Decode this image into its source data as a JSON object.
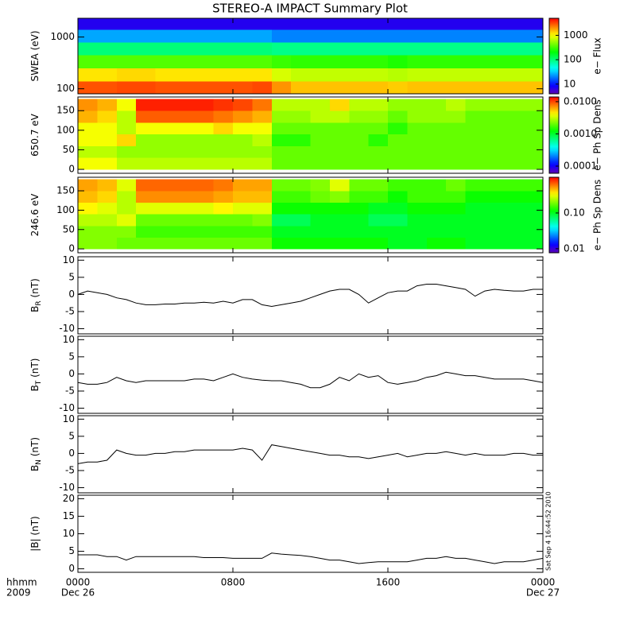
{
  "page": {
    "title": "STEREO-A IMPACT Summary Plot",
    "x_row_labels": [
      "hhmm",
      "2009"
    ],
    "timestamp": "Sat Sep  4 16:44:52 2010"
  },
  "chart_data": [
    {
      "type": "heatmap",
      "ylabel": "SWEA (eV)",
      "ylog": true,
      "ylim": [
        80,
        2300
      ],
      "yticks": [
        100,
        1000
      ],
      "xlim": [
        0,
        24
      ],
      "xticks": [
        {
          "value": 0,
          "label": "0000"
        },
        {
          "value": 8,
          "label": "0800"
        },
        {
          "value": 16,
          "label": "1600"
        },
        {
          "value": 24,
          "label": "0000"
        }
      ],
      "x_edges": [
        0,
        1,
        2,
        3,
        4,
        5,
        6,
        7,
        8,
        9,
        10,
        11,
        12,
        13,
        14,
        15,
        16,
        17,
        18,
        19,
        20,
        21,
        22,
        23,
        24
      ],
      "y_edges": [
        80,
        140,
        250,
        450,
        800,
        1400,
        2300
      ],
      "colormap": "rainbow",
      "zlog": true,
      "zlim": [
        4,
        5000
      ],
      "zticks": [
        10,
        100,
        1000
      ],
      "zlabel": "e− Flux",
      "z": [
        [
          3000,
          3000,
          3200,
          3200,
          3000,
          3000,
          3000,
          3000,
          3000,
          3200,
          2000,
          1500,
          1500,
          1500,
          1500,
          1500,
          1400,
          1500,
          1500,
          1500,
          1500,
          1500,
          1500,
          1500
        ],
        [
          1200,
          1200,
          1300,
          1300,
          1200,
          1200,
          1200,
          1200,
          1200,
          1200,
          800,
          700,
          700,
          700,
          700,
          700,
          650,
          700,
          700,
          700,
          700,
          700,
          700,
          700
        ],
        [
          350,
          350,
          350,
          350,
          350,
          350,
          350,
          350,
          350,
          350,
          300,
          280,
          280,
          280,
          280,
          280,
          250,
          280,
          280,
          280,
          280,
          280,
          280,
          280
        ],
        [
          100,
          100,
          100,
          100,
          100,
          100,
          100,
          100,
          100,
          100,
          90,
          90,
          90,
          90,
          90,
          90,
          90,
          90,
          90,
          90,
          90,
          90,
          90,
          90
        ],
        [
          25,
          25,
          25,
          25,
          25,
          25,
          25,
          25,
          25,
          25,
          20,
          20,
          20,
          20,
          20,
          20,
          20,
          20,
          20,
          20,
          20,
          20,
          20,
          20
        ],
        [
          7,
          7,
          7,
          7,
          7,
          7,
          7,
          7,
          7,
          7,
          7,
          7,
          7,
          7,
          7,
          7,
          7,
          7,
          7,
          7,
          7,
          7,
          7,
          7
        ]
      ]
    },
    {
      "type": "heatmap",
      "ylabel": "650.7 eV",
      "ylog": false,
      "ylim": [
        -10,
        185
      ],
      "yticks": [
        0,
        50,
        100,
        150
      ],
      "xlim": [
        0,
        24
      ],
      "xticks": [
        {
          "value": 0,
          "label": "0000"
        },
        {
          "value": 8,
          "label": "0800"
        },
        {
          "value": 16,
          "label": "1600"
        },
        {
          "value": 24,
          "label": "0000"
        }
      ],
      "x_edges": [
        0,
        1,
        2,
        3,
        4,
        5,
        6,
        7,
        8,
        9,
        10,
        11,
        12,
        13,
        14,
        15,
        16,
        17,
        18,
        19,
        20,
        21,
        22,
        23,
        24
      ],
      "y_edges": [
        0,
        30,
        60,
        90,
        120,
        150,
        180
      ],
      "colormap": "rainbow",
      "zlog": true,
      "zlim": [
        6e-05,
        0.014
      ],
      "zticks": [
        {
          "value": 0.0001,
          "label": "0.0001"
        },
        {
          "value": 0.001,
          "label": "0.0010"
        },
        {
          "value": 0.01,
          "label": "0.0100"
        }
      ],
      "zlabel": "e− Ph Sp Dens",
      "z": [
        [
          0.004,
          0.004,
          0.003,
          0.003,
          0.003,
          0.003,
          0.003,
          0.003,
          0.003,
          0.003,
          0.002,
          0.002,
          0.002,
          0.002,
          0.002,
          0.002,
          0.002,
          0.002,
          0.002,
          0.002,
          0.002,
          0.002,
          0.002,
          0.002
        ],
        [
          0.003,
          0.003,
          0.0025,
          0.0025,
          0.0025,
          0.0025,
          0.0025,
          0.0025,
          0.0025,
          0.0025,
          0.002,
          0.002,
          0.002,
          0.002,
          0.002,
          0.002,
          0.002,
          0.002,
          0.002,
          0.002,
          0.002,
          0.002,
          0.002,
          0.002
        ],
        [
          0.004,
          0.004,
          0.005,
          0.0025,
          0.0025,
          0.0025,
          0.0025,
          0.0025,
          0.0025,
          0.003,
          0.0015,
          0.0015,
          0.002,
          0.002,
          0.002,
          0.0015,
          0.002,
          0.002,
          0.002,
          0.002,
          0.002,
          0.002,
          0.002,
          0.002
        ],
        [
          0.004,
          0.004,
          0.003,
          0.004,
          0.004,
          0.004,
          0.004,
          0.005,
          0.004,
          0.004,
          0.002,
          0.002,
          0.002,
          0.002,
          0.002,
          0.002,
          0.0015,
          0.002,
          0.002,
          0.002,
          0.002,
          0.002,
          0.002,
          0.002
        ],
        [
          0.006,
          0.005,
          0.003,
          0.009,
          0.009,
          0.009,
          0.009,
          0.008,
          0.007,
          0.006,
          0.0025,
          0.0025,
          0.003,
          0.003,
          0.0025,
          0.0025,
          0.002,
          0.0025,
          0.0025,
          0.0025,
          0.002,
          0.002,
          0.002,
          0.002
        ],
        [
          0.007,
          0.006,
          0.004,
          0.012,
          0.012,
          0.012,
          0.012,
          0.011,
          0.01,
          0.008,
          0.003,
          0.003,
          0.003,
          0.005,
          0.003,
          0.003,
          0.0025,
          0.0025,
          0.0025,
          0.003,
          0.0025,
          0.0025,
          0.0025,
          0.0025
        ]
      ]
    },
    {
      "type": "heatmap",
      "ylabel": "246.6 eV",
      "ylog": false,
      "ylim": [
        -10,
        185
      ],
      "yticks": [
        0,
        50,
        100,
        150
      ],
      "xlim": [
        0,
        24
      ],
      "xticks": [
        {
          "value": 0,
          "label": "0000"
        },
        {
          "value": 8,
          "label": "0800"
        },
        {
          "value": 16,
          "label": "1600"
        },
        {
          "value": 24,
          "label": "0000"
        }
      ],
      "x_edges": [
        0,
        1,
        2,
        3,
        4,
        5,
        6,
        7,
        8,
        9,
        10,
        11,
        12,
        13,
        14,
        15,
        16,
        17,
        18,
        19,
        20,
        21,
        22,
        23,
        24
      ],
      "y_edges": [
        0,
        30,
        60,
        90,
        120,
        150,
        180
      ],
      "colormap": "rainbow",
      "zlog": true,
      "zlim": [
        0.0077,
        1
      ],
      "zticks": [
        0.01,
        {
          "value": 0.1,
          "label": "0.10"
        }
      ],
      "zlabel": "e− Ph Sp Dens",
      "z": [
        [
          0.2,
          0.2,
          0.18,
          0.18,
          0.18,
          0.18,
          0.18,
          0.18,
          0.18,
          0.18,
          0.12,
          0.12,
          0.12,
          0.12,
          0.12,
          0.12,
          0.1,
          0.1,
          0.12,
          0.12,
          0.1,
          0.1,
          0.1,
          0.1
        ],
        [
          0.2,
          0.2,
          0.2,
          0.15,
          0.15,
          0.15,
          0.15,
          0.15,
          0.15,
          0.15,
          0.1,
          0.1,
          0.1,
          0.1,
          0.1,
          0.1,
          0.1,
          0.1,
          0.1,
          0.1,
          0.1,
          0.1,
          0.1,
          0.1
        ],
        [
          0.25,
          0.25,
          0.3,
          0.18,
          0.18,
          0.18,
          0.18,
          0.18,
          0.18,
          0.2,
          0.08,
          0.08,
          0.1,
          0.1,
          0.1,
          0.08,
          0.08,
          0.1,
          0.1,
          0.1,
          0.1,
          0.1,
          0.1,
          0.1
        ],
        [
          0.35,
          0.3,
          0.25,
          0.3,
          0.3,
          0.3,
          0.3,
          0.35,
          0.3,
          0.3,
          0.12,
          0.12,
          0.12,
          0.12,
          0.12,
          0.1,
          0.1,
          0.12,
          0.12,
          0.12,
          0.1,
          0.1,
          0.1,
          0.1
        ],
        [
          0.45,
          0.4,
          0.25,
          0.55,
          0.55,
          0.55,
          0.55,
          0.5,
          0.45,
          0.45,
          0.15,
          0.15,
          0.18,
          0.2,
          0.15,
          0.15,
          0.12,
          0.15,
          0.15,
          0.15,
          0.12,
          0.12,
          0.12,
          0.12
        ],
        [
          0.5,
          0.45,
          0.3,
          0.65,
          0.65,
          0.65,
          0.65,
          0.6,
          0.5,
          0.5,
          0.18,
          0.18,
          0.2,
          0.3,
          0.18,
          0.18,
          0.15,
          0.15,
          0.15,
          0.18,
          0.15,
          0.15,
          0.15,
          0.15
        ]
      ]
    },
    {
      "type": "line",
      "ylabel": "B",
      "ylabel_sub": "R",
      "ylabel_unit": " (nT)",
      "ylim": [
        -11.5,
        11
      ],
      "yticks": [
        -10,
        -5,
        0,
        5,
        10
      ],
      "color": "#000000",
      "xlim": [
        0,
        24
      ],
      "xticks": [
        {
          "value": 0,
          "label": "0000"
        },
        {
          "value": 8,
          "label": "0800"
        },
        {
          "value": 16,
          "label": "1600"
        },
        {
          "value": 24,
          "label": "0000"
        }
      ],
      "x": [
        0,
        0.5,
        1,
        1.5,
        2,
        2.5,
        3,
        3.5,
        4,
        4.5,
        5,
        5.5,
        6,
        6.5,
        7,
        7.5,
        8,
        8.5,
        9,
        9.5,
        10,
        10.5,
        11,
        11.5,
        12,
        12.5,
        13,
        13.5,
        14,
        14.5,
        15,
        15.5,
        16,
        16.5,
        17,
        17.5,
        18,
        18.5,
        19,
        19.5,
        20,
        20.5,
        21,
        21.5,
        22,
        22.5,
        23,
        23.5,
        24
      ],
      "values": [
        0,
        1,
        0.5,
        0,
        -1,
        -1.5,
        -2.5,
        -3,
        -3,
        -2.8,
        -2.8,
        -2.5,
        -2.5,
        -2.3,
        -2.5,
        -2,
        -2.5,
        -1.5,
        -1.5,
        -3,
        -3.5,
        -3,
        -2.5,
        -2,
        -1,
        0,
        1,
        1.5,
        1.5,
        0,
        -2.5,
        -1,
        0.5,
        1,
        1,
        2.5,
        3,
        3,
        2.5,
        2,
        1.5,
        -0.5,
        1,
        1.5,
        1.2,
        1,
        1,
        1.5,
        1.5
      ]
    },
    {
      "type": "line",
      "ylabel": "B",
      "ylabel_sub": "T",
      "ylabel_unit": " (nT)",
      "ylim": [
        -11.5,
        11
      ],
      "yticks": [
        -10,
        -5,
        0,
        5,
        10
      ],
      "color": "#000000",
      "xlim": [
        0,
        24
      ],
      "xticks": [
        {
          "value": 0,
          "label": "0000"
        },
        {
          "value": 8,
          "label": "0800"
        },
        {
          "value": 16,
          "label": "1600"
        },
        {
          "value": 24,
          "label": "0000"
        }
      ],
      "x": [
        0,
        0.5,
        1,
        1.5,
        2,
        2.5,
        3,
        3.5,
        4,
        4.5,
        5,
        5.5,
        6,
        6.5,
        7,
        7.5,
        8,
        8.5,
        9,
        9.5,
        10,
        10.5,
        11,
        11.5,
        12,
        12.5,
        13,
        13.5,
        14,
        14.5,
        15,
        15.5,
        16,
        16.5,
        17,
        17.5,
        18,
        18.5,
        19,
        19.5,
        20,
        20.5,
        21,
        21.5,
        22,
        22.5,
        23,
        23.5,
        24
      ],
      "values": [
        -2.5,
        -3,
        -3,
        -2.5,
        -1,
        -2,
        -2.5,
        -2,
        -2,
        -2,
        -2,
        -2,
        -1.5,
        -1.5,
        -2,
        -1,
        0,
        -1,
        -1.5,
        -1.8,
        -2,
        -2,
        -2.5,
        -3,
        -4,
        -4,
        -3,
        -1,
        -2,
        0,
        -1,
        -0.5,
        -2.5,
        -3,
        -2.5,
        -2,
        -1,
        -0.5,
        0.5,
        0,
        -0.5,
        -0.5,
        -1,
        -1.5,
        -1.5,
        -1.5,
        -1.5,
        -2,
        -2.5
      ]
    },
    {
      "type": "line",
      "ylabel": "B",
      "ylabel_sub": "N",
      "ylabel_unit": " (nT)",
      "ylim": [
        -11.5,
        11
      ],
      "yticks": [
        -10,
        -5,
        0,
        5,
        10
      ],
      "color": "#000000",
      "xlim": [
        0,
        24
      ],
      "xticks": [
        {
          "value": 0,
          "label": "0000"
        },
        {
          "value": 8,
          "label": "0800"
        },
        {
          "value": 16,
          "label": "1600"
        },
        {
          "value": 24,
          "label": "0000"
        }
      ],
      "x": [
        0,
        0.5,
        1,
        1.5,
        2,
        2.5,
        3,
        3.5,
        4,
        4.5,
        5,
        5.5,
        6,
        6.5,
        7,
        7.5,
        8,
        8.5,
        9,
        9.5,
        10,
        10.5,
        11,
        11.5,
        12,
        12.5,
        13,
        13.5,
        14,
        14.5,
        15,
        15.5,
        16,
        16.5,
        17,
        17.5,
        18,
        18.5,
        19,
        19.5,
        20,
        20.5,
        21,
        21.5,
        22,
        22.5,
        23,
        23.5,
        24
      ],
      "values": [
        -3,
        -2.5,
        -2.5,
        -2,
        1,
        0,
        -0.5,
        -0.5,
        0,
        0,
        0.5,
        0.5,
        1,
        1,
        1,
        1,
        1,
        1.5,
        1,
        -2,
        2.5,
        2,
        1.5,
        1,
        0.5,
        0,
        -0.5,
        -0.5,
        -1,
        -1,
        -1.5,
        -1,
        -0.5,
        0,
        -1,
        -0.5,
        0,
        0,
        0.5,
        0,
        -0.5,
        0,
        -0.5,
        -0.5,
        -0.5,
        0,
        0,
        -0.5,
        -0.5
      ]
    },
    {
      "type": "line",
      "ylabel": "|B| (nT)",
      "ylim": [
        -1,
        21
      ],
      "yticks": [
        0,
        5,
        10,
        15,
        20
      ],
      "color": "#000000",
      "xlim": [
        0,
        24
      ],
      "xticks": [
        {
          "value": 0,
          "label": "0000"
        },
        {
          "value": 8,
          "label": "0800"
        },
        {
          "value": 16,
          "label": "1600"
        },
        {
          "value": 24,
          "label": "0000"
        }
      ],
      "xdates": [
        {
          "value": 0,
          "label": "Dec 26"
        },
        {
          "value": 24,
          "label": "Dec 27"
        }
      ],
      "x": [
        0,
        0.5,
        1,
        1.5,
        2,
        2.5,
        3,
        3.5,
        4,
        4.5,
        5,
        5.5,
        6,
        6.5,
        7,
        7.5,
        8,
        8.5,
        9,
        9.5,
        10,
        10.5,
        11,
        11.5,
        12,
        12.5,
        13,
        13.5,
        14,
        14.5,
        15,
        15.5,
        16,
        16.5,
        17,
        17.5,
        18,
        18.5,
        19,
        19.5,
        20,
        20.5,
        21,
        21.5,
        22,
        22.5,
        23,
        23.5,
        24
      ],
      "values": [
        4,
        4,
        4,
        3.5,
        3.5,
        2.5,
        3.5,
        3.5,
        3.5,
        3.5,
        3.5,
        3.5,
        3.5,
        3.2,
        3.2,
        3.2,
        3,
        3,
        3,
        3,
        4.5,
        4.2,
        4,
        3.8,
        3.5,
        3,
        2.5,
        2.5,
        2,
        1.5,
        1.8,
        2,
        2,
        2,
        2,
        2.5,
        3,
        3,
        3.5,
        3,
        3,
        2.5,
        2,
        1.5,
        2,
        2,
        2,
        2.5,
        3
      ]
    }
  ]
}
